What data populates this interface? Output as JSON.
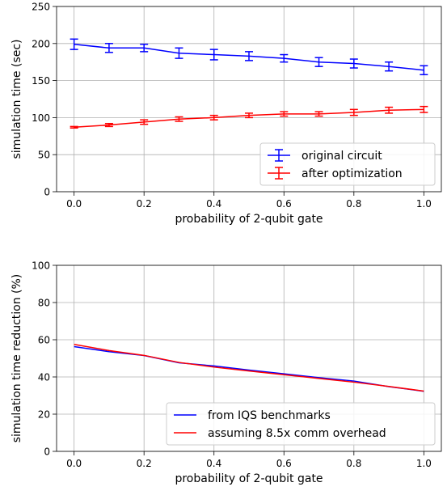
{
  "chart_data": [
    {
      "type": "line",
      "xlabel": "probability of 2-qubit gate",
      "ylabel": "simulation time (sec)",
      "xlim": [
        -0.05,
        1.05
      ],
      "ylim": [
        0,
        250
      ],
      "x_ticks": [
        0.0,
        0.2,
        0.4,
        0.6,
        0.8,
        1.0
      ],
      "x_tick_labels": [
        "0.0",
        "0.2",
        "0.4",
        "0.6",
        "0.8",
        "1.0"
      ],
      "y_ticks": [
        0,
        50,
        100,
        150,
        200,
        250
      ],
      "y_tick_labels": [
        "0",
        "50",
        "100",
        "150",
        "200",
        "250"
      ],
      "grid": true,
      "legend_position": "lower-right",
      "error_bars": true,
      "x": [
        0.0,
        0.1,
        0.2,
        0.3,
        0.4,
        0.5,
        0.6,
        0.7,
        0.8,
        0.9,
        1.0
      ],
      "series": [
        {
          "name": "original circuit",
          "color": "#0000ff",
          "values": [
            199,
            194,
            194,
            187,
            185,
            183,
            180,
            175,
            173,
            169,
            164
          ],
          "errors": [
            7,
            6,
            5,
            7,
            7,
            6,
            5,
            6,
            6,
            6,
            6
          ]
        },
        {
          "name": "after optimization",
          "color": "#ff0000",
          "values": [
            87,
            90,
            94,
            98,
            100,
            103,
            105,
            105,
            107,
            110,
            111
          ],
          "errors": [
            1,
            2,
            3,
            3,
            3,
            3,
            3,
            3,
            4,
            4,
            4
          ]
        }
      ]
    },
    {
      "type": "line",
      "xlabel": "probability of 2-qubit gate",
      "ylabel": "simulation time reduction (%)",
      "xlim": [
        -0.05,
        1.05
      ],
      "ylim": [
        0,
        100
      ],
      "x_ticks": [
        0.0,
        0.2,
        0.4,
        0.6,
        0.8,
        1.0
      ],
      "x_tick_labels": [
        "0.0",
        "0.2",
        "0.4",
        "0.6",
        "0.8",
        "1.0"
      ],
      "y_ticks": [
        0,
        20,
        40,
        60,
        80,
        100
      ],
      "y_tick_labels": [
        "0",
        "20",
        "40",
        "60",
        "80",
        "100"
      ],
      "grid": true,
      "legend_position": "lower-right",
      "error_bars": false,
      "x": [
        0.0,
        0.1,
        0.2,
        0.3,
        0.4,
        0.5,
        0.6,
        0.7,
        0.8,
        0.9,
        1.0
      ],
      "series": [
        {
          "name": "from IQS benchmarks",
          "color": "#0000ff",
          "values": [
            56.3,
            53.6,
            51.5,
            47.6,
            45.9,
            43.7,
            41.7,
            39.6,
            37.8,
            34.8,
            32.3
          ]
        },
        {
          "name": "assuming 8.5x comm overhead",
          "color": "#ff0000",
          "values": [
            57.5,
            54.2,
            51.6,
            47.8,
            45.3,
            43.2,
            41.2,
            39.2,
            37.2,
            34.9,
            32.4
          ]
        }
      ]
    }
  ]
}
